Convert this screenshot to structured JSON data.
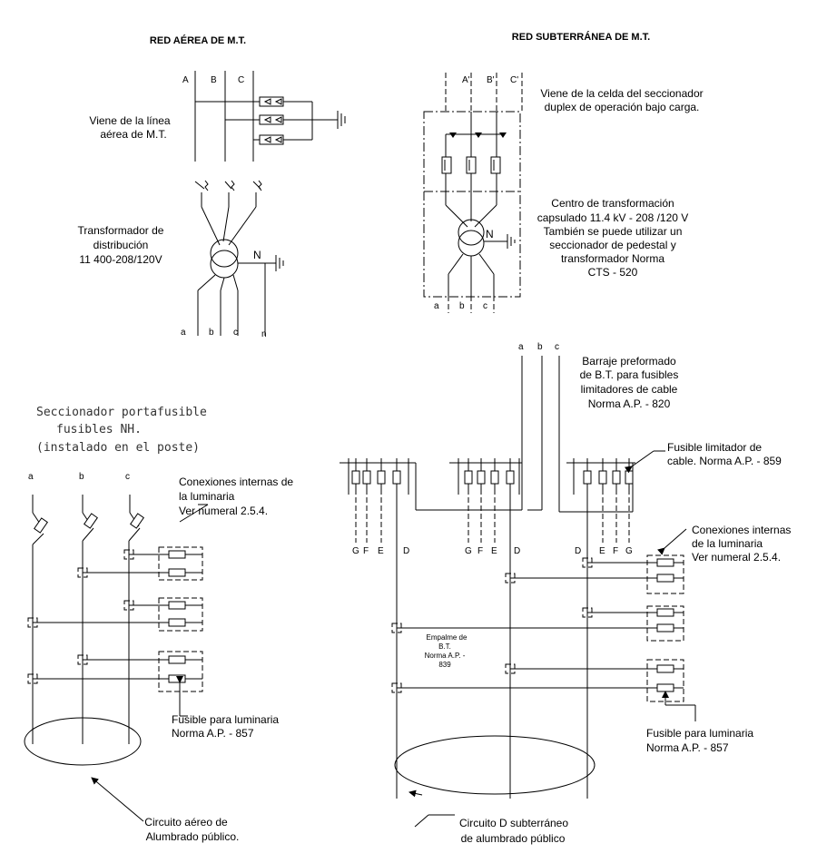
{
  "left": {
    "title": "RED AÉREA DE M.T.",
    "phases_top": [
      "A",
      "B",
      "C"
    ],
    "source_label": [
      "Viene de la línea",
      "aérea de M.T."
    ],
    "transformer_label": [
      "Transformador de",
      "distribución",
      "11 400-208/120V"
    ],
    "neutral": "N",
    "phases_bottom": [
      "a",
      "b",
      "c",
      "n"
    ],
    "disconnector_label": [
      "Seccionador portafusible",
      "fusibles NH.",
      "(instalado en el poste)"
    ],
    "phases_lower": [
      "a",
      "b",
      "c"
    ],
    "internal_connections": [
      "Conexiones internas de",
      "la luminaria",
      "Ver numeral 2.5.4."
    ],
    "fuse_label": [
      "Fusible para luminaria",
      "Norma A.P. - 857"
    ],
    "circuit_label": [
      "Circuito aéreo de",
      "Alumbrado público."
    ]
  },
  "right": {
    "title": "RED SUBTERRÁNEA DE M.T.",
    "phases_top": [
      "A'",
      "B'",
      "C'"
    ],
    "source_label": [
      "Viene de la celda del seccionador",
      "duplex de operación bajo carga."
    ],
    "transformer_label": [
      "Centro de transformación",
      "capsulado 11.4 kV - 208 /120 V",
      "También se puede utilizar un",
      "seccionador de pedestal y",
      "transformador Norma",
      "CTS - 520"
    ],
    "neutral": "N",
    "phases_bottom": [
      "a",
      "b",
      "c"
    ],
    "bus_phases": [
      "a",
      "b",
      "c"
    ],
    "busbar_label": [
      "Barraje preformado",
      "de B.T. para fusibles",
      "limitadores de cable",
      "Norma A.P. - 820"
    ],
    "limiter_label": [
      "Fusible limitador de",
      "cable. Norma A.P. - 859"
    ],
    "group1_letters": [
      "G",
      "F",
      "E",
      "D"
    ],
    "group2_letters": [
      "G",
      "F",
      "E",
      "D"
    ],
    "group3_letters": [
      "D",
      "E",
      "F",
      "G"
    ],
    "internal_connections": [
      "Conexiones internas",
      "de la luminaria",
      "Ver numeral 2.5.4."
    ],
    "splice_label": [
      "Empalme de",
      "B.T.",
      "Norma A.P. -",
      "839"
    ],
    "fuse_label": [
      "Fusible para luminaria",
      "Norma A.P. - 857"
    ],
    "circuit_label": [
      "Circuito D subterráneo",
      "de alumbrado público"
    ]
  }
}
